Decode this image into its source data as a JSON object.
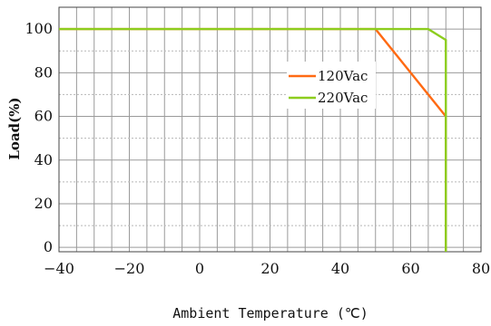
{
  "chart_data": {
    "type": "line",
    "xlabel": "Ambient Temperature (℃)",
    "ylabel": "Load(%)",
    "xlim": [
      -40,
      80
    ],
    "ylim": [
      -2,
      110
    ],
    "xticks": [
      -40,
      -20,
      0,
      20,
      40,
      60,
      80
    ],
    "yticks": [
      0,
      20,
      40,
      60,
      80,
      100
    ],
    "x_minor_step": 5,
    "y_minor_step": 10,
    "grid": true,
    "legend_position": "center-right",
    "series": [
      {
        "name": "120Vac",
        "color": "#ff6a13",
        "points": [
          [
            -40,
            100
          ],
          [
            50,
            100
          ],
          [
            70,
            60
          ],
          [
            70,
            -2
          ]
        ]
      },
      {
        "name": "220Vac",
        "color": "#8ccd1e",
        "points": [
          [
            -40,
            100
          ],
          [
            65,
            100
          ],
          [
            70,
            95
          ],
          [
            70,
            -2
          ]
        ]
      }
    ]
  }
}
